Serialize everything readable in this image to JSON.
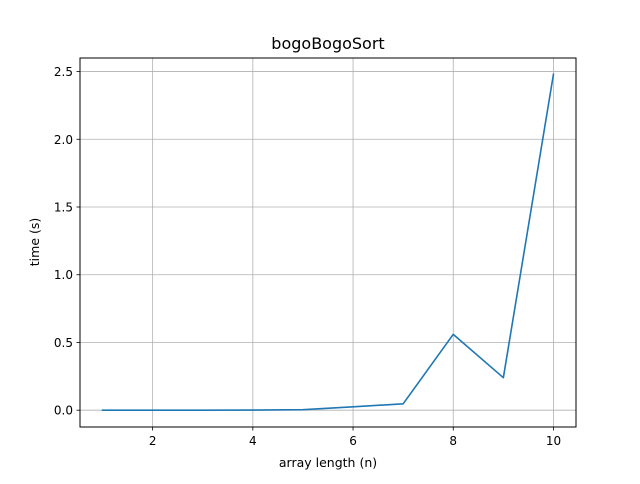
{
  "chart_data": {
    "type": "line",
    "title": "bogoBogoSort",
    "xlabel": "array length (n)",
    "ylabel": "time (s)",
    "xlim": [
      0.55,
      10.45
    ],
    "ylim": [
      -0.124,
      2.6
    ],
    "xticks": [
      2,
      4,
      6,
      8,
      10
    ],
    "xtick_labels": [
      "2",
      "4",
      "6",
      "8",
      "10"
    ],
    "yticks": [
      0.0,
      0.5,
      1.0,
      1.5,
      2.0,
      2.5
    ],
    "ytick_labels": [
      "0.0",
      "0.5",
      "1.0",
      "1.5",
      "2.0",
      "2.5"
    ],
    "grid": true,
    "legend": false,
    "series": [
      {
        "color": "#1f77b4",
        "x": [
          1,
          2,
          3,
          4,
          5,
          6,
          7,
          8,
          9,
          10
        ],
        "y": [
          0.0,
          0.0,
          0.0,
          0.001,
          0.004,
          0.025,
          0.047,
          0.56,
          0.24,
          2.48
        ]
      }
    ]
  }
}
